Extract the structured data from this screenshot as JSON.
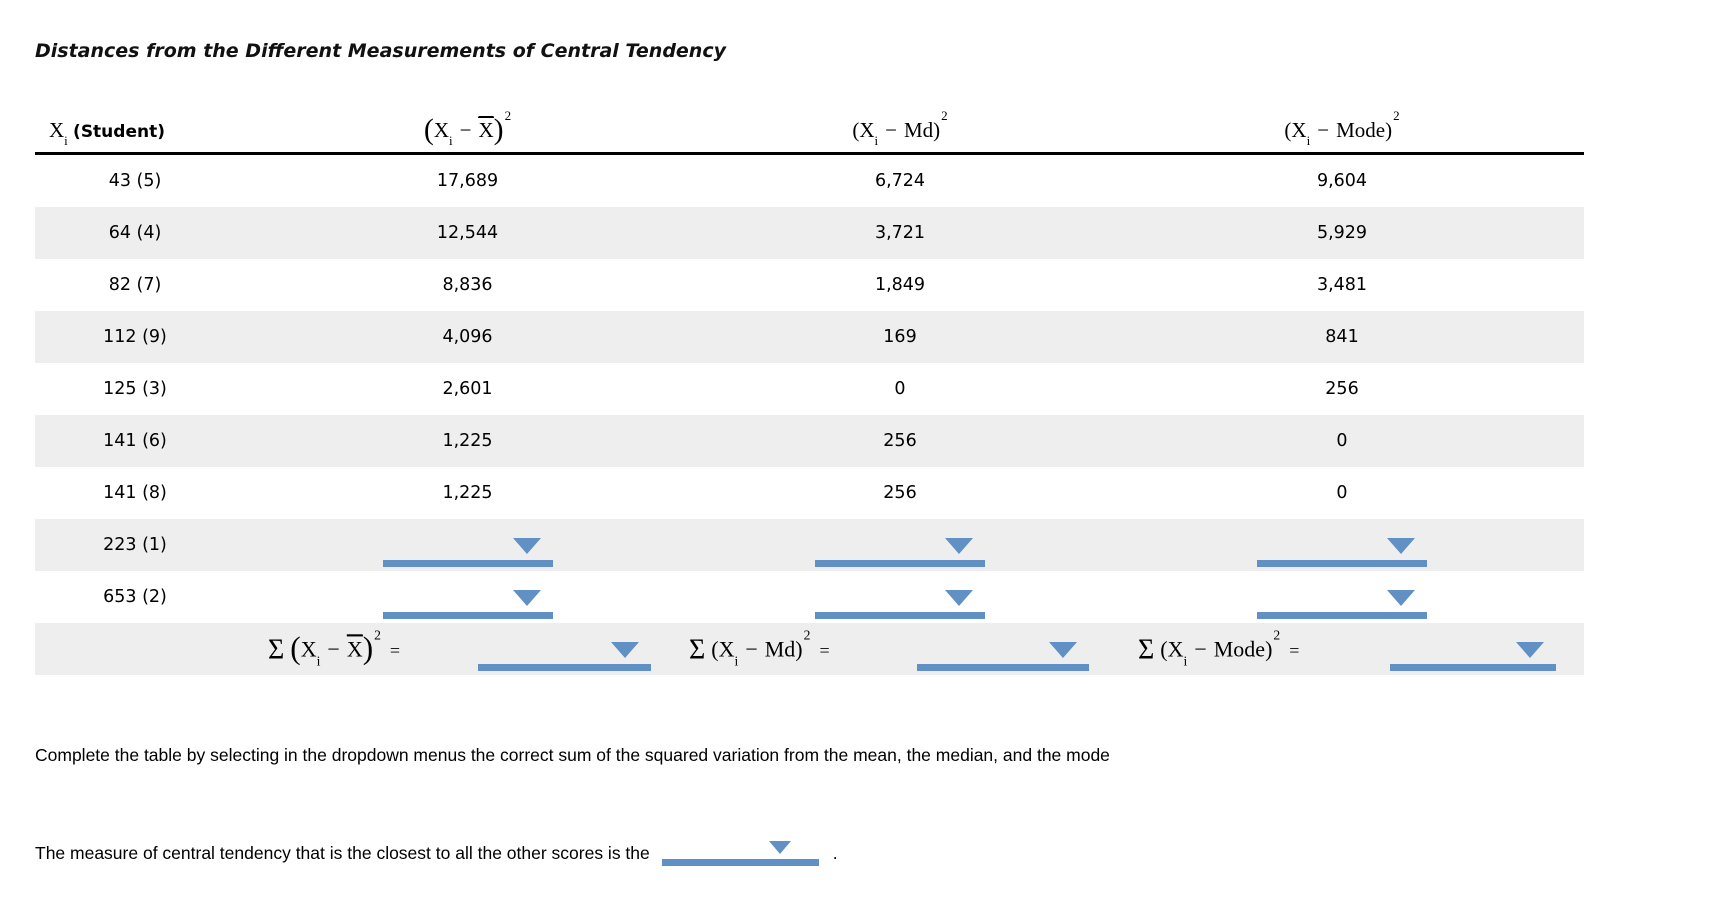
{
  "title": "Distances from the Different Measurements of Central Tendency",
  "math": {
    "X": "X",
    "sub_i": "i",
    "minus": "−",
    "sup_2": "2",
    "lparen": "(",
    "rparen": ")",
    "sigma": "Σ",
    "equals": "=",
    "Md": "Md",
    "Mode": "Mode",
    "student_label": "(Student)"
  },
  "table": {
    "rows": [
      {
        "student": "43 (5)",
        "mean_sq": "17,689",
        "md_sq": "6,724",
        "mode_sq": "9,604"
      },
      {
        "student": "64 (4)",
        "mean_sq": "12,544",
        "md_sq": "3,721",
        "mode_sq": "5,929"
      },
      {
        "student": "82 (7)",
        "mean_sq": "8,836",
        "md_sq": "1,849",
        "mode_sq": "3,481"
      },
      {
        "student": "112 (9)",
        "mean_sq": "4,096",
        "md_sq": "169",
        "mode_sq": "841"
      },
      {
        "student": "125 (3)",
        "mean_sq": "2,601",
        "md_sq": "0",
        "mode_sq": "256"
      },
      {
        "student": "141 (6)",
        "mean_sq": "1,225",
        "md_sq": "256",
        "mode_sq": "0"
      },
      {
        "student": "141 (8)",
        "mean_sq": "1,225",
        "md_sq": "256",
        "mode_sq": "0"
      },
      {
        "student": "223 (1)",
        "mean_sq": "",
        "md_sq": "",
        "mode_sq": ""
      },
      {
        "student": "653 (2)",
        "mean_sq": "",
        "md_sq": "",
        "mode_sq": ""
      }
    ]
  },
  "instructions": "Complete the table by selecting in the dropdown menus the correct sum of the squared variation from the mean, the median, and the mode",
  "question": {
    "text": "The measure of central tendency that is the closest to all the other scores is the",
    "period": "."
  },
  "colors": {
    "accent_blue": "#6190c4",
    "row_stripe": "#eeeeee"
  }
}
